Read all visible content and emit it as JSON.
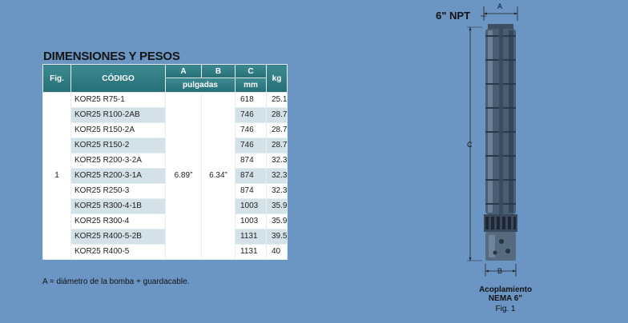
{
  "title": "DIMENSIONES Y PESOS",
  "table": {
    "headers": {
      "fig": "Fig.",
      "codigo": "CÓDIGO",
      "a": "A",
      "b": "B",
      "c": "C",
      "kg": "kg",
      "pulgadas": "pulgadas",
      "mm": "mm"
    },
    "fig_value": "1",
    "a_value": "6.89”",
    "b_value": "6.34”",
    "rows": [
      {
        "code": "KOR25 R75-1",
        "c": "618",
        "kg": "25.1"
      },
      {
        "code": "KOR25 R100-2AB",
        "c": "746",
        "kg": "28.7"
      },
      {
        "code": "KOR25 R150-2A",
        "c": "746",
        "kg": "28.7"
      },
      {
        "code": "KOR25 R150-2",
        "c": "746",
        "kg": "28.7"
      },
      {
        "code": "KOR25 R200-3-2A",
        "c": "874",
        "kg": "32.3"
      },
      {
        "code": "KOR25 R200-3-1A",
        "c": "874",
        "kg": "32.3"
      },
      {
        "code": "KOR25 R250-3",
        "c": "874",
        "kg": "32.3"
      },
      {
        "code": "KOR25 R300-4-1B",
        "c": "1003",
        "kg": "35.9"
      },
      {
        "code": "KOR25 R300-4",
        "c": "1003",
        "kg": "35.9"
      },
      {
        "code": "KOR25 R400-5-2B",
        "c": "1131",
        "kg": "39.5"
      },
      {
        "code": "KOR25 R400-5",
        "c": "1131",
        "kg": "40"
      }
    ]
  },
  "footnote": "A = diámetro de la bomba + guardacable.",
  "figure": {
    "npt": "6\" NPT",
    "dim_a": "A",
    "dim_b": "B",
    "dim_c": "C",
    "coupling_line1": "Acoplamiento",
    "coupling_line2": "NEMA 6\"",
    "fig": "Fig. 1"
  }
}
